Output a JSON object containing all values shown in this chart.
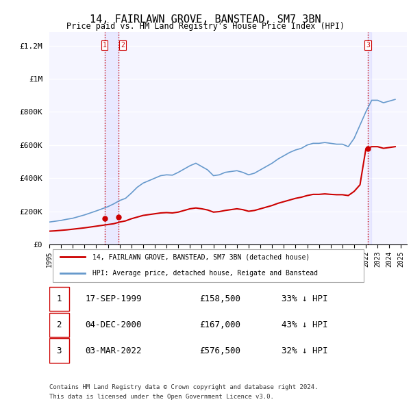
{
  "title": "14, FAIRLAWN GROVE, BANSTEAD, SM7 3BN",
  "subtitle": "Price paid vs. HM Land Registry's House Price Index (HPI)",
  "footer1": "Contains HM Land Registry data © Crown copyright and database right 2024.",
  "footer2": "This data is licensed under the Open Government Licence v3.0.",
  "legend_label_red": "14, FAIRLAWN GROVE, BANSTEAD, SM7 3BN (detached house)",
  "legend_label_blue": "HPI: Average price, detached house, Reigate and Banstead",
  "transactions": [
    {
      "num": 1,
      "date": "17-SEP-1999",
      "price": "£158,500",
      "pct": "33% ↓ HPI",
      "year": 1999.71
    },
    {
      "num": 2,
      "date": "04-DEC-2000",
      "price": "£167,000",
      "pct": "43% ↓ HPI",
      "year": 2000.92
    },
    {
      "num": 3,
      "date": "03-MAR-2022",
      "price": "£576,500",
      "pct": "32% ↓ HPI",
      "year": 2022.17
    }
  ],
  "hpi_x": [
    1995.0,
    1995.5,
    1996.0,
    1996.5,
    1997.0,
    1997.5,
    1998.0,
    1998.5,
    1999.0,
    1999.5,
    2000.0,
    2000.5,
    2001.0,
    2001.5,
    2002.0,
    2002.5,
    2003.0,
    2003.5,
    2004.0,
    2004.5,
    2005.0,
    2005.5,
    2006.0,
    2006.5,
    2007.0,
    2007.5,
    2008.0,
    2008.5,
    2009.0,
    2009.5,
    2010.0,
    2010.5,
    2011.0,
    2011.5,
    2012.0,
    2012.5,
    2013.0,
    2013.5,
    2014.0,
    2014.5,
    2015.0,
    2015.5,
    2016.0,
    2016.5,
    2017.0,
    2017.5,
    2018.0,
    2018.5,
    2019.0,
    2019.5,
    2020.0,
    2020.5,
    2021.0,
    2021.5,
    2022.0,
    2022.5,
    2023.0,
    2023.5,
    2024.0,
    2024.5
  ],
  "hpi_y": [
    135000,
    140000,
    145000,
    152000,
    158000,
    168000,
    178000,
    190000,
    202000,
    215000,
    228000,
    245000,
    265000,
    278000,
    310000,
    345000,
    370000,
    385000,
    400000,
    415000,
    420000,
    418000,
    435000,
    455000,
    475000,
    490000,
    470000,
    450000,
    415000,
    420000,
    435000,
    440000,
    445000,
    435000,
    420000,
    430000,
    450000,
    470000,
    490000,
    515000,
    535000,
    555000,
    570000,
    580000,
    600000,
    610000,
    610000,
    615000,
    610000,
    605000,
    605000,
    590000,
    640000,
    720000,
    800000,
    870000,
    870000,
    855000,
    865000,
    875000
  ],
  "red_x": [
    1995.0,
    1995.5,
    1996.0,
    1996.5,
    1997.0,
    1997.5,
    1998.0,
    1998.5,
    1999.0,
    1999.5,
    2000.0,
    2000.5,
    2001.0,
    2001.5,
    2002.0,
    2002.5,
    2003.0,
    2003.5,
    2004.0,
    2004.5,
    2005.0,
    2005.5,
    2006.0,
    2006.5,
    2007.0,
    2007.5,
    2008.0,
    2008.5,
    2009.0,
    2009.5,
    2010.0,
    2010.5,
    2011.0,
    2011.5,
    2012.0,
    2012.5,
    2013.0,
    2013.5,
    2014.0,
    2014.5,
    2015.0,
    2015.5,
    2016.0,
    2016.5,
    2017.0,
    2017.5,
    2018.0,
    2018.5,
    2019.0,
    2019.5,
    2020.0,
    2020.5,
    2021.0,
    2021.5,
    2022.0,
    2022.5,
    2023.0,
    2023.5,
    2024.0,
    2024.5
  ],
  "red_y": [
    80000,
    82000,
    85000,
    88000,
    92000,
    96000,
    100000,
    105000,
    110000,
    115000,
    120000,
    125000,
    135000,
    142000,
    155000,
    165000,
    175000,
    180000,
    185000,
    190000,
    192000,
    190000,
    195000,
    205000,
    215000,
    220000,
    215000,
    208000,
    195000,
    198000,
    205000,
    210000,
    215000,
    210000,
    200000,
    205000,
    215000,
    225000,
    235000,
    248000,
    258000,
    268000,
    278000,
    285000,
    295000,
    302000,
    302000,
    305000,
    302000,
    300000,
    300000,
    295000,
    320000,
    360000,
    576500,
    590000,
    590000,
    580000,
    585000,
    590000
  ],
  "vline_years": [
    1999.71,
    2000.92,
    2022.17
  ],
  "vline_color": "#cc0000",
  "vline_style": ":",
  "hline_color": "#aaaacc",
  "hline_style": "-",
  "red_color": "#cc0000",
  "blue_color": "#6699cc",
  "background_color": "#f5f5ff",
  "ylim": [
    0,
    1280000
  ],
  "xlim": [
    1995,
    2025.5
  ],
  "yticks": [
    0,
    200000,
    400000,
    600000,
    800000,
    1000000,
    1200000
  ],
  "ytick_labels": [
    "£0",
    "£200K",
    "£400K",
    "£600K",
    "£800K",
    "£1M",
    "£1.2M"
  ],
  "xticks": [
    1995,
    1996,
    1997,
    1998,
    1999,
    2000,
    2001,
    2002,
    2003,
    2004,
    2005,
    2006,
    2007,
    2008,
    2009,
    2010,
    2011,
    2012,
    2013,
    2014,
    2015,
    2016,
    2017,
    2018,
    2019,
    2020,
    2021,
    2022,
    2023,
    2024,
    2025
  ]
}
